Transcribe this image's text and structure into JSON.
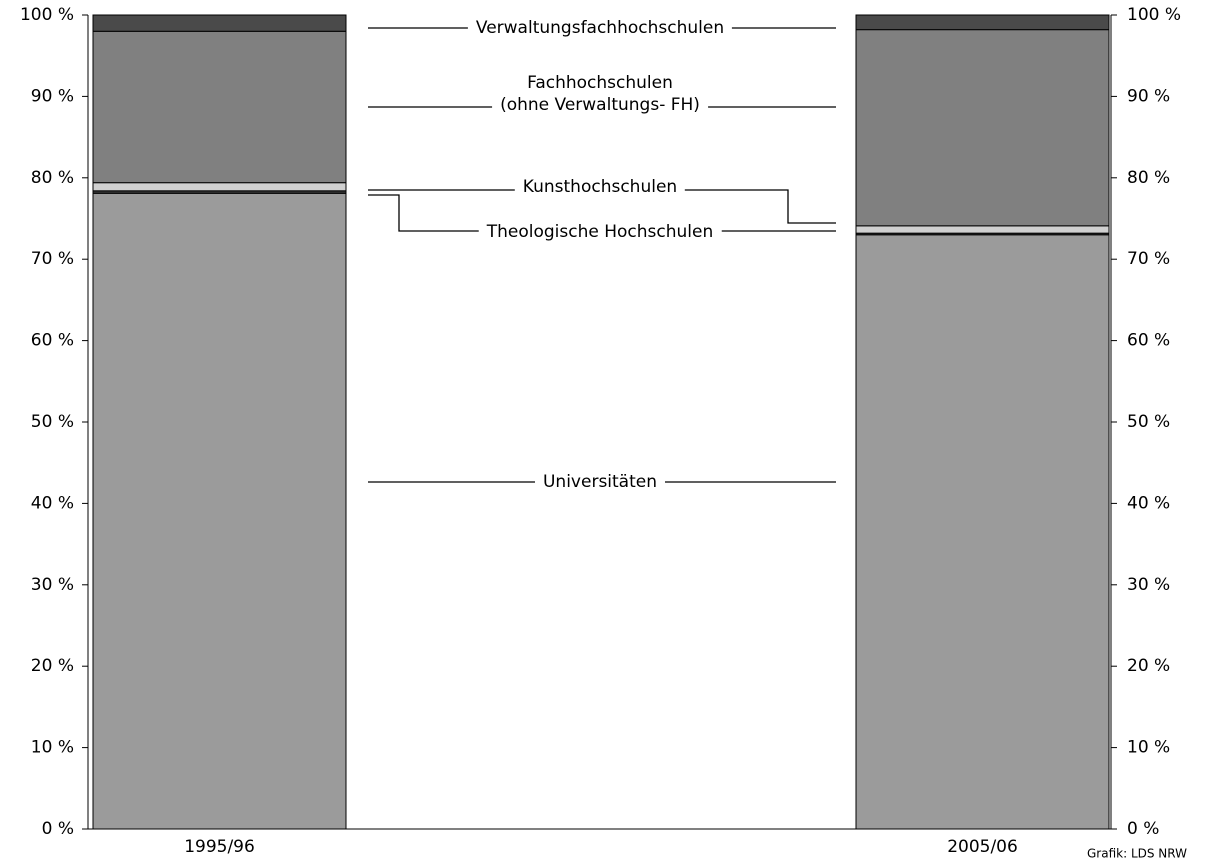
{
  "chart_data": {
    "type": "stacked_bar",
    "categories": [
      "1995/96",
      "2005/06"
    ],
    "series": [
      {
        "name": "Universitäten",
        "color": "#9b9b9b",
        "values": [
          78.1,
          73.0
        ]
      },
      {
        "name": "Theologische Hochschulen",
        "color": "#3a3a3a",
        "values": [
          0.3,
          0.2
        ]
      },
      {
        "name": "Kunsthochschulen",
        "color": "#d0d0d0",
        "values": [
          1.0,
          0.9
        ]
      },
      {
        "name": "Fachhochschulen\n(ohne Verwaltungs- FH)",
        "color": "#808080",
        "values": [
          18.6,
          24.1
        ]
      },
      {
        "name": "Verwaltungsfachhochschulen",
        "color": "#4a4a4a",
        "values": [
          2.0,
          1.8
        ]
      }
    ],
    "ylim": [
      0,
      100
    ],
    "yticks": [
      {
        "value": 0,
        "label": "0 %"
      },
      {
        "value": 10,
        "label": "10 %"
      },
      {
        "value": 20,
        "label": "20 %"
      },
      {
        "value": 30,
        "label": "30 %"
      },
      {
        "value": 40,
        "label": "40 %"
      },
      {
        "value": 50,
        "label": "50 %"
      },
      {
        "value": 60,
        "label": "60 %"
      },
      {
        "value": 70,
        "label": "70 %"
      },
      {
        "value": 80,
        "label": "80 %"
      },
      {
        "value": 90,
        "label": "90 %"
      },
      {
        "value": 100,
        "label": "100 %"
      }
    ],
    "source": "Grafik: LDS NRW"
  }
}
